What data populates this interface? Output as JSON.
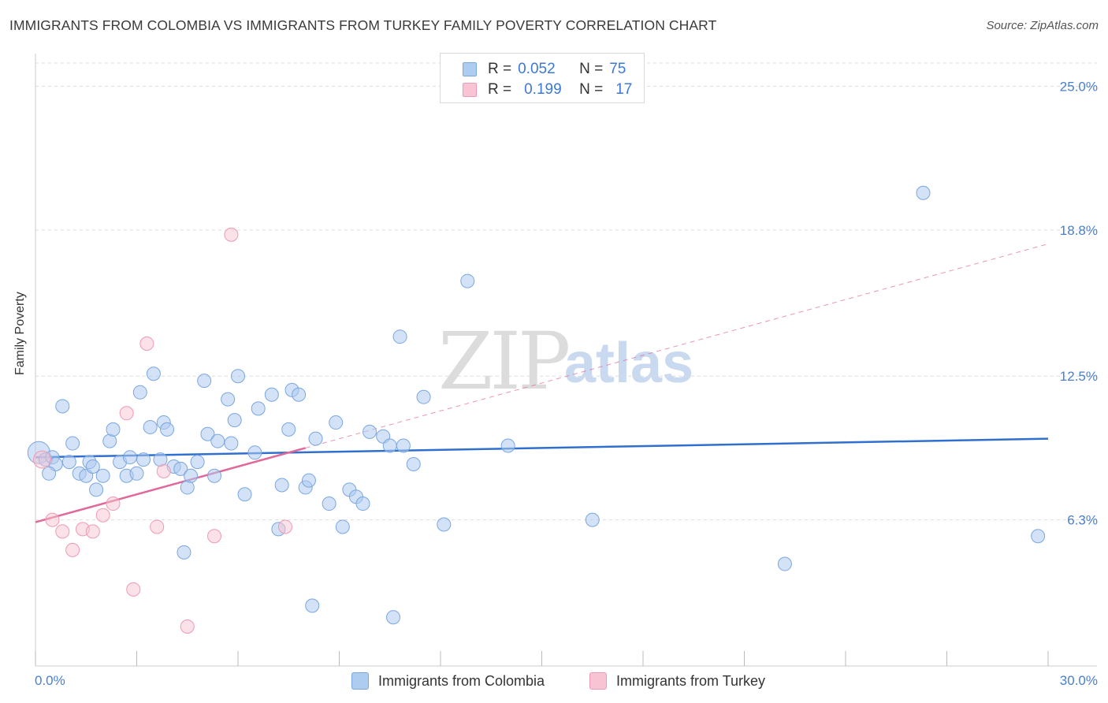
{
  "title": "IMMIGRANTS FROM COLOMBIA VS IMMIGRANTS FROM TURKEY FAMILY POVERTY CORRELATION CHART",
  "source": "Source: ZipAtlas.com",
  "watermark": {
    "zip": "ZIP",
    "atlas": "atlas"
  },
  "legend": {
    "colombia": {
      "r_label": "R =",
      "r_value": "0.052",
      "n_label": "N =",
      "n_value": "75"
    },
    "turkey": {
      "r_label": "R =",
      "r_value": "0.199",
      "n_label": "N =",
      "n_value": "17"
    }
  },
  "bottom_legend": {
    "colombia": "Immigrants from Colombia",
    "turkey": "Immigrants from Turkey"
  },
  "colors": {
    "colombia_fill": "#aecbf0",
    "colombia_stroke": "#7aa7e0",
    "colombia_line": "#2f6fce",
    "turkey_fill": "#f8c3d2",
    "turkey_stroke": "#ef9ab4",
    "turkey_line": "#e0689a",
    "grid": "#dcdcdc",
    "tick_text": "#4a7fcf"
  },
  "chart_data": {
    "type": "scatter",
    "title": "IMMIGRANTS FROM COLOMBIA VS IMMIGRANTS FROM TURKEY FAMILY POVERTY CORRELATION CHART",
    "xlabel": "",
    "ylabel": "Family Poverty",
    "xlim": [
      0,
      30
    ],
    "ylim": [
      0,
      26
    ],
    "x_tick_labels": [
      "0.0%",
      "30.0%"
    ],
    "y_ticks": [
      6.3,
      12.5,
      18.8,
      25.0
    ],
    "y_tick_labels": [
      "6.3%",
      "12.5%",
      "18.8%",
      "25.0%"
    ],
    "grid": true,
    "series": [
      {
        "name": "Immigrants from Colombia",
        "trend": {
          "x": [
            0,
            30
          ],
          "y": [
            9.0,
            9.8
          ],
          "style": "solid"
        },
        "points": [
          [
            0.1,
            9.2
          ],
          [
            0.3,
            8.9
          ],
          [
            0.5,
            9.0
          ],
          [
            0.6,
            8.7
          ],
          [
            0.4,
            8.3
          ],
          [
            0.8,
            11.2
          ],
          [
            1.0,
            8.8
          ],
          [
            1.1,
            9.6
          ],
          [
            1.3,
            8.3
          ],
          [
            1.5,
            8.2
          ],
          [
            1.6,
            8.8
          ],
          [
            1.7,
            8.6
          ],
          [
            1.8,
            7.6
          ],
          [
            2.0,
            8.2
          ],
          [
            2.2,
            9.7
          ],
          [
            2.3,
            10.2
          ],
          [
            2.5,
            8.8
          ],
          [
            2.7,
            8.2
          ],
          [
            2.8,
            9.0
          ],
          [
            3.0,
            8.3
          ],
          [
            3.1,
            11.8
          ],
          [
            3.2,
            8.9
          ],
          [
            3.4,
            10.3
          ],
          [
            3.5,
            12.6
          ],
          [
            3.7,
            8.9
          ],
          [
            3.8,
            10.5
          ],
          [
            3.9,
            10.2
          ],
          [
            4.1,
            8.6
          ],
          [
            4.3,
            8.5
          ],
          [
            4.4,
            4.9
          ],
          [
            4.5,
            7.7
          ],
          [
            4.6,
            8.2
          ],
          [
            4.8,
            8.8
          ],
          [
            5.0,
            12.3
          ],
          [
            5.1,
            10.0
          ],
          [
            5.3,
            8.2
          ],
          [
            5.4,
            9.7
          ],
          [
            5.7,
            11.5
          ],
          [
            5.8,
            9.6
          ],
          [
            5.9,
            10.6
          ],
          [
            6.0,
            12.5
          ],
          [
            6.2,
            7.4
          ],
          [
            6.5,
            9.2
          ],
          [
            6.6,
            11.1
          ],
          [
            7.0,
            11.7
          ],
          [
            7.2,
            5.9
          ],
          [
            7.3,
            7.8
          ],
          [
            7.5,
            10.2
          ],
          [
            7.6,
            11.9
          ],
          [
            7.8,
            11.7
          ],
          [
            8.0,
            7.7
          ],
          [
            8.1,
            8.0
          ],
          [
            8.2,
            2.6
          ],
          [
            8.3,
            9.8
          ],
          [
            8.7,
            7.0
          ],
          [
            8.9,
            10.5
          ],
          [
            9.1,
            6.0
          ],
          [
            9.3,
            7.6
          ],
          [
            9.5,
            7.3
          ],
          [
            9.7,
            7.0
          ],
          [
            9.9,
            10.1
          ],
          [
            10.3,
            9.9
          ],
          [
            10.5,
            9.5
          ],
          [
            10.6,
            2.1
          ],
          [
            10.8,
            14.2
          ],
          [
            10.9,
            9.5
          ],
          [
            11.2,
            8.7
          ],
          [
            11.5,
            11.6
          ],
          [
            12.1,
            6.1
          ],
          [
            12.8,
            16.6
          ],
          [
            14.0,
            9.5
          ],
          [
            16.5,
            6.3
          ],
          [
            22.2,
            4.4
          ],
          [
            26.3,
            20.4
          ],
          [
            29.7,
            5.6
          ]
        ]
      },
      {
        "name": "Immigrants from Turkey",
        "trend": {
          "x": [
            0,
            8.0
          ],
          "y": [
            6.2,
            9.4
          ],
          "style": "solid",
          "extension": {
            "x": [
              8.0,
              30
            ],
            "y": [
              9.4,
              18.2
            ],
            "style": "dashed"
          }
        },
        "points": [
          [
            0.2,
            8.9
          ],
          [
            0.5,
            6.3
          ],
          [
            0.8,
            5.8
          ],
          [
            1.1,
            5.0
          ],
          [
            1.4,
            5.9
          ],
          [
            1.7,
            5.8
          ],
          [
            2.0,
            6.5
          ],
          [
            2.3,
            7.0
          ],
          [
            2.7,
            10.9
          ],
          [
            2.9,
            3.3
          ],
          [
            3.3,
            13.9
          ],
          [
            3.6,
            6.0
          ],
          [
            3.8,
            8.4
          ],
          [
            4.5,
            1.7
          ],
          [
            5.3,
            5.6
          ],
          [
            5.8,
            18.6
          ],
          [
            7.4,
            6.0
          ]
        ]
      }
    ]
  }
}
